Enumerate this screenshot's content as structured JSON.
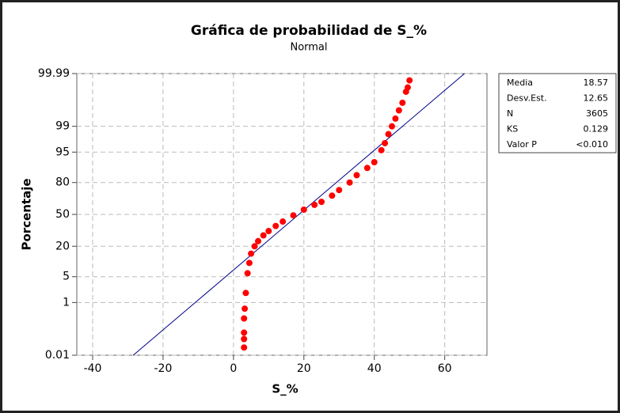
{
  "chart_data": {
    "type": "scatter",
    "title": "Gráfica de probabilidad de S_%",
    "subtitle": "Normal",
    "xlabel": "S_%",
    "ylabel": "Porcentaje",
    "xlim": [
      -44.5,
      72
    ],
    "xticks": [
      -40,
      -20,
      0,
      20,
      40,
      60
    ],
    "ylim": [
      0.01,
      99.99
    ],
    "yticks": [
      0.01,
      1,
      5,
      20,
      50,
      80,
      95,
      99,
      99.99
    ],
    "yscale": "normal-probability",
    "grid": true,
    "color": "#ff0000",
    "line_color": "#00008b",
    "x": [
      3,
      3,
      3,
      3,
      3.2,
      3.5,
      4,
      4.5,
      5,
      6,
      7,
      8.5,
      10,
      12,
      14,
      17,
      20,
      23,
      25,
      28,
      30,
      33,
      35,
      38,
      40,
      42,
      43,
      44,
      45,
      46,
      47,
      48,
      49,
      49.5,
      50
    ],
    "values": [
      0.022,
      0.05,
      0.09,
      0.3,
      0.64,
      1.9,
      6,
      10,
      15,
      20,
      24,
      29,
      33,
      38,
      42.5,
      49,
      55,
      60,
      63,
      69,
      74,
      80,
      85,
      89,
      91.6,
      95.5,
      97,
      98.3,
      99,
      99.43,
      99.7,
      99.84,
      99.94,
      99.96,
      99.98
    ],
    "stats": [
      {
        "label": "Media",
        "value": 18.57
      },
      {
        "label": "Desv.Est.",
        "value": 12.65
      },
      {
        "label": "N",
        "value": 3605
      },
      {
        "label": "KS",
        "value": 0.129
      },
      {
        "label": "Valor P",
        "value": "<0.010"
      }
    ]
  }
}
